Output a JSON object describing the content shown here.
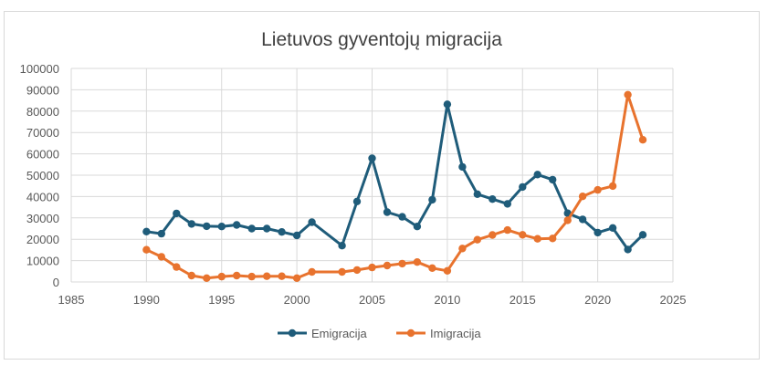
{
  "chart_data": {
    "type": "scatter",
    "title": "Lietuvos gyventojų migracija",
    "xlabel": "",
    "ylabel": "",
    "xlim": [
      1985,
      2025
    ],
    "ylim": [
      0,
      100000
    ],
    "x_ticks": [
      "1985",
      "1990",
      "1995",
      "2000",
      "2005",
      "2010",
      "2015",
      "2020",
      "2025"
    ],
    "y_ticks": [
      "0",
      "10000",
      "20000",
      "30000",
      "40000",
      "50000",
      "60000",
      "70000",
      "80000",
      "90000",
      "100000"
    ],
    "grid": true,
    "legend": "bottom",
    "series": [
      {
        "name": "Emigracija",
        "color": "#1f5c7a",
        "points": [
          [
            1990,
            23600
          ],
          [
            1991,
            22600
          ],
          [
            1992,
            32100
          ],
          [
            1993,
            27200
          ],
          [
            1994,
            26100
          ],
          [
            1995,
            26000
          ],
          [
            1996,
            26700
          ],
          [
            1997,
            25000
          ],
          [
            1998,
            25000
          ],
          [
            1999,
            23400
          ],
          [
            2000,
            21800
          ],
          [
            2001,
            28000
          ],
          [
            2003,
            17000
          ],
          [
            2004,
            37700
          ],
          [
            2005,
            57900
          ],
          [
            2006,
            32700
          ],
          [
            2007,
            30500
          ],
          [
            2008,
            26000
          ],
          [
            2009,
            38500
          ],
          [
            2010,
            83200
          ],
          [
            2011,
            53900
          ],
          [
            2012,
            41100
          ],
          [
            2013,
            38800
          ],
          [
            2014,
            36600
          ],
          [
            2015,
            44500
          ],
          [
            2016,
            50300
          ],
          [
            2017,
            47900
          ],
          [
            2018,
            32200
          ],
          [
            2019,
            29300
          ],
          [
            2020,
            23100
          ],
          [
            2021,
            25300
          ],
          [
            2022,
            15200
          ],
          [
            2023,
            22100
          ]
        ]
      },
      {
        "name": "Imigracija",
        "color": "#e8732e",
        "points": [
          [
            1990,
            15100
          ],
          [
            1991,
            11800
          ],
          [
            1992,
            7000
          ],
          [
            1993,
            3000
          ],
          [
            1994,
            1800
          ],
          [
            1995,
            2500
          ],
          [
            1996,
            3000
          ],
          [
            1997,
            2500
          ],
          [
            1998,
            2700
          ],
          [
            1999,
            2700
          ],
          [
            2000,
            1800
          ],
          [
            2001,
            4700
          ],
          [
            2003,
            4700
          ],
          [
            2004,
            5600
          ],
          [
            2005,
            6800
          ],
          [
            2006,
            7700
          ],
          [
            2007,
            8600
          ],
          [
            2008,
            9300
          ],
          [
            2009,
            6500
          ],
          [
            2010,
            5200
          ],
          [
            2011,
            15700
          ],
          [
            2012,
            19800
          ],
          [
            2013,
            22000
          ],
          [
            2014,
            24300
          ],
          [
            2015,
            22100
          ],
          [
            2016,
            20200
          ],
          [
            2017,
            20400
          ],
          [
            2018,
            28900
          ],
          [
            2019,
            40100
          ],
          [
            2020,
            43100
          ],
          [
            2021,
            44900
          ],
          [
            2022,
            87700
          ],
          [
            2023,
            66600
          ]
        ]
      }
    ]
  }
}
